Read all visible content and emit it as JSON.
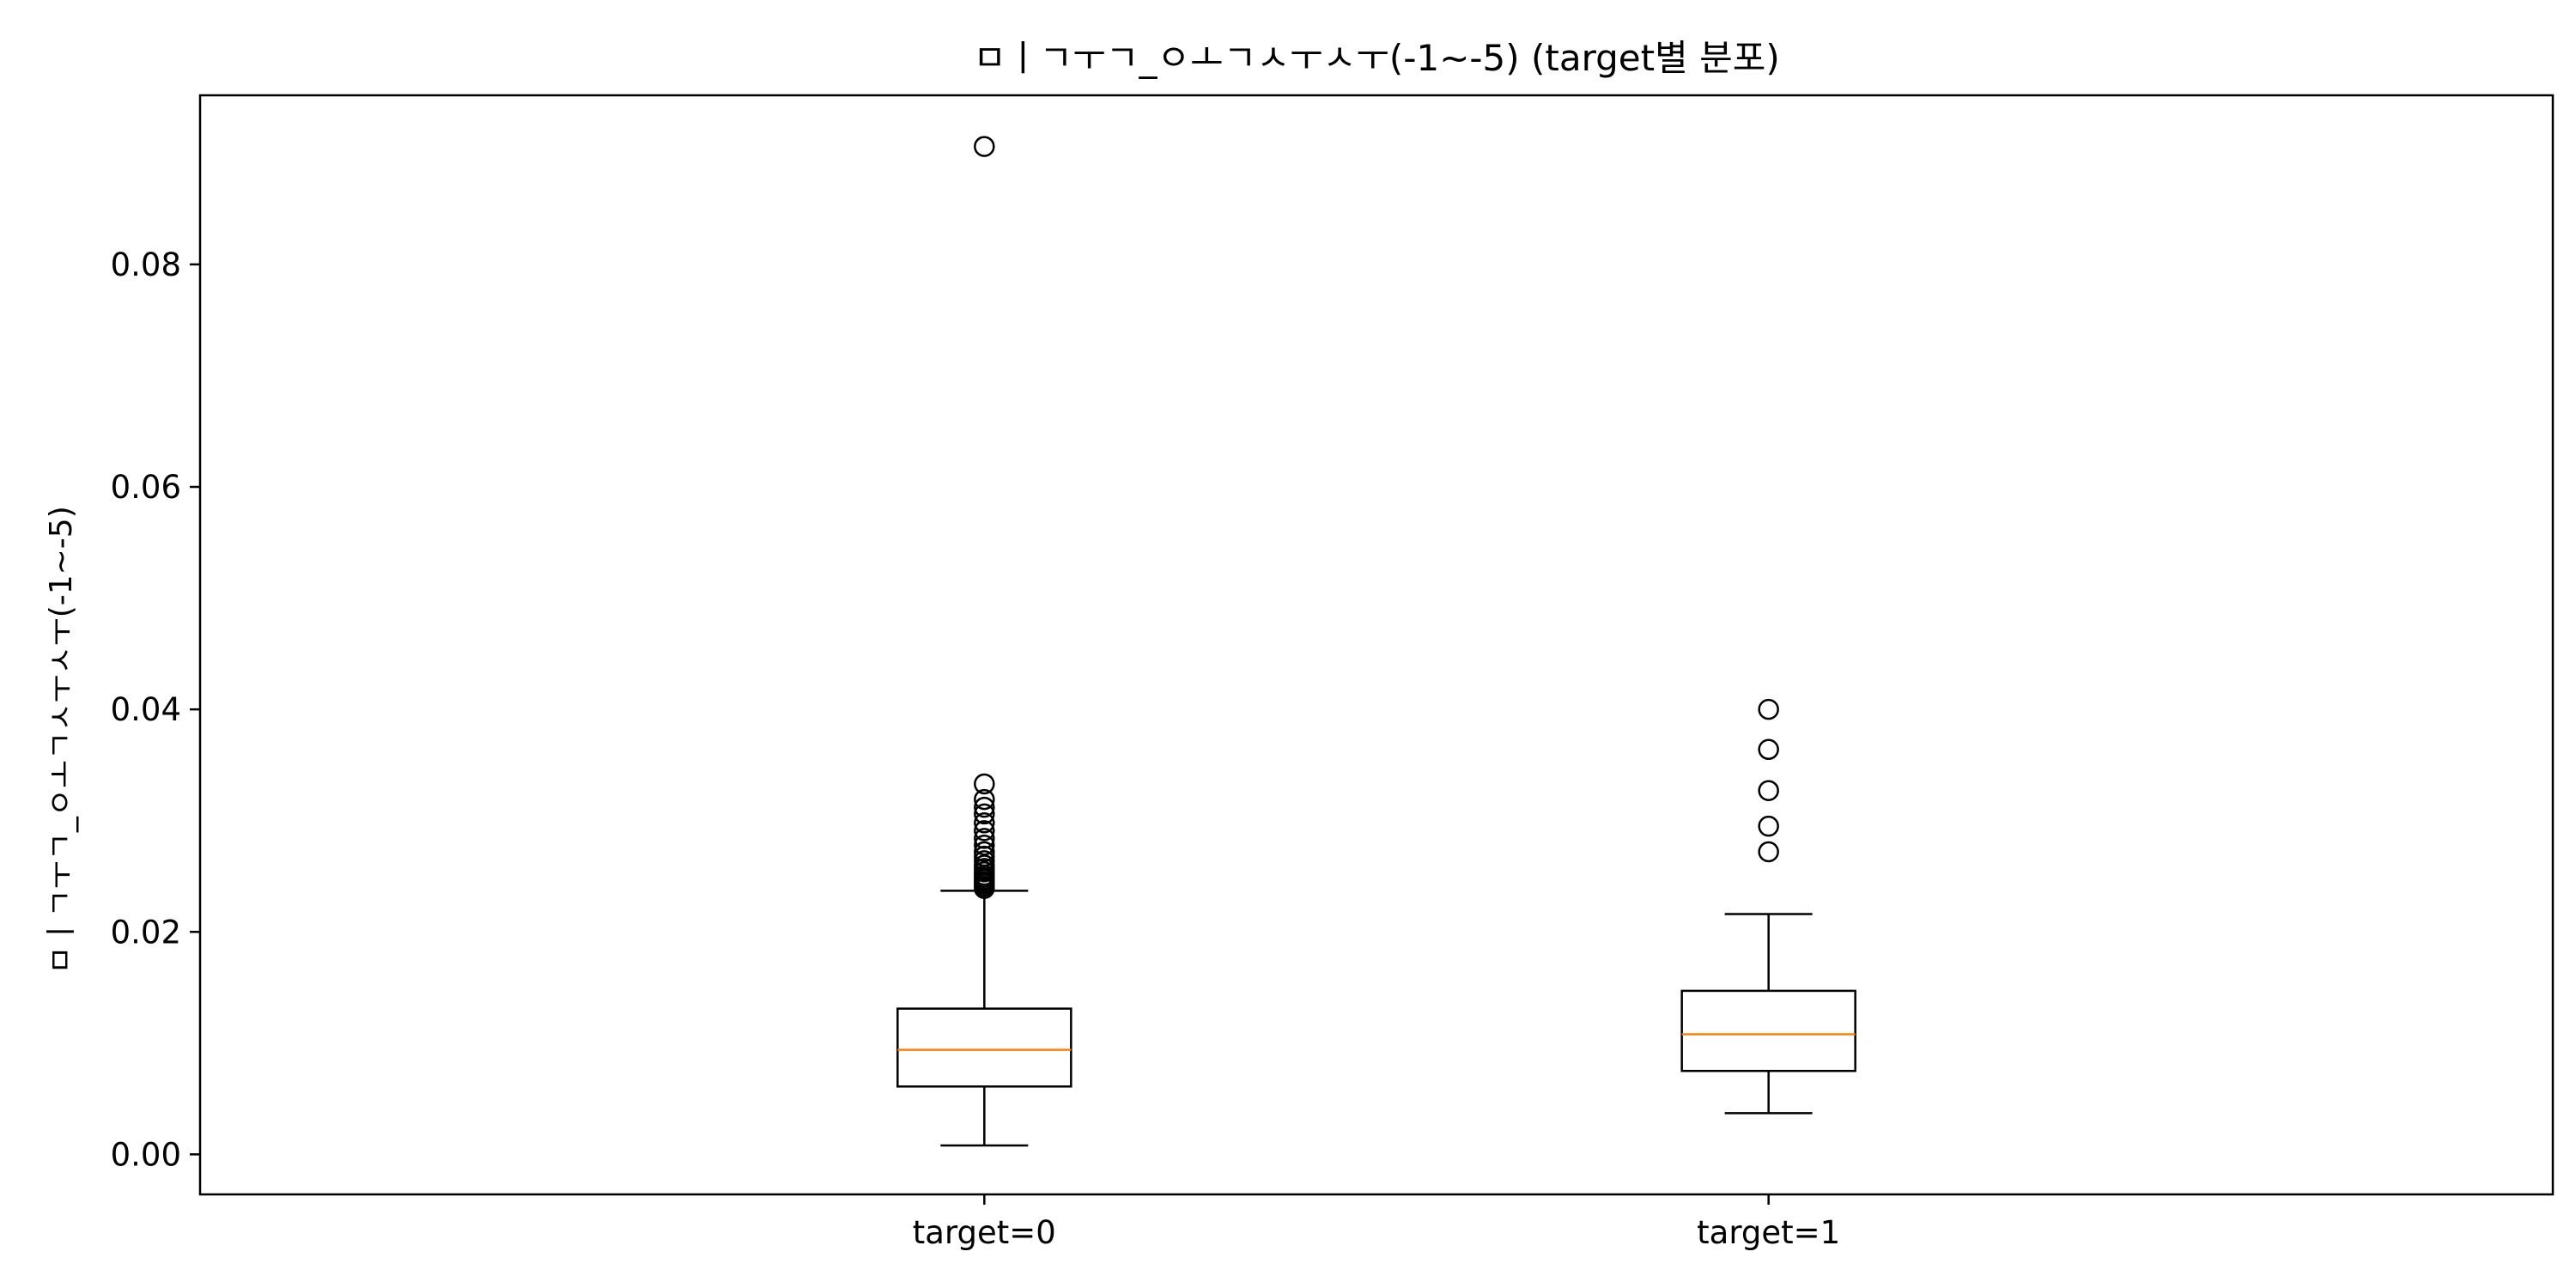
{
  "chart_data": {
    "type": "boxplot",
    "title": "ㅁㅣㄱㅜㄱ_ㅇㅗㄱㅅㅜㅅㅜ(-1~-5) (target별 분포)",
    "xlabel": "",
    "ylabel": "ㅁㅣㄱㅜㄱ_ㅇㅗㄱㅅㅜㅅㅜ(-1~-5)",
    "categories": [
      "target=0",
      "target=1"
    ],
    "ylim": [
      -0.0036,
      0.0952
    ],
    "yticks": [
      0.0,
      0.02,
      0.04,
      0.06,
      0.08
    ],
    "ytick_labels": [
      "0.00",
      "0.02",
      "0.04",
      "0.06",
      "0.08"
    ],
    "grid": false,
    "boxes": [
      {
        "category": "target=0",
        "whisker_low": 0.0008,
        "q1": 0.0061,
        "median": 0.0094,
        "q3": 0.0131,
        "whisker_high": 0.0237,
        "outliers": [
          0.0239,
          0.0241,
          0.0243,
          0.0245,
          0.0247,
          0.0249,
          0.0251,
          0.0254,
          0.0257,
          0.026,
          0.0264,
          0.0268,
          0.0272,
          0.0278,
          0.0284,
          0.0291,
          0.0298,
          0.0306,
          0.0312,
          0.0319,
          0.0333,
          0.0906
        ]
      },
      {
        "category": "target=1",
        "whisker_low": 0.0037,
        "q1": 0.0075,
        "median": 0.0108,
        "q3": 0.0147,
        "whisker_high": 0.0216,
        "outliers": [
          0.0272,
          0.0295,
          0.0327,
          0.0364,
          0.04
        ]
      }
    ],
    "colors": {
      "box": "#000000",
      "median": "#ff7f0e",
      "outlier": "#000000"
    }
  }
}
